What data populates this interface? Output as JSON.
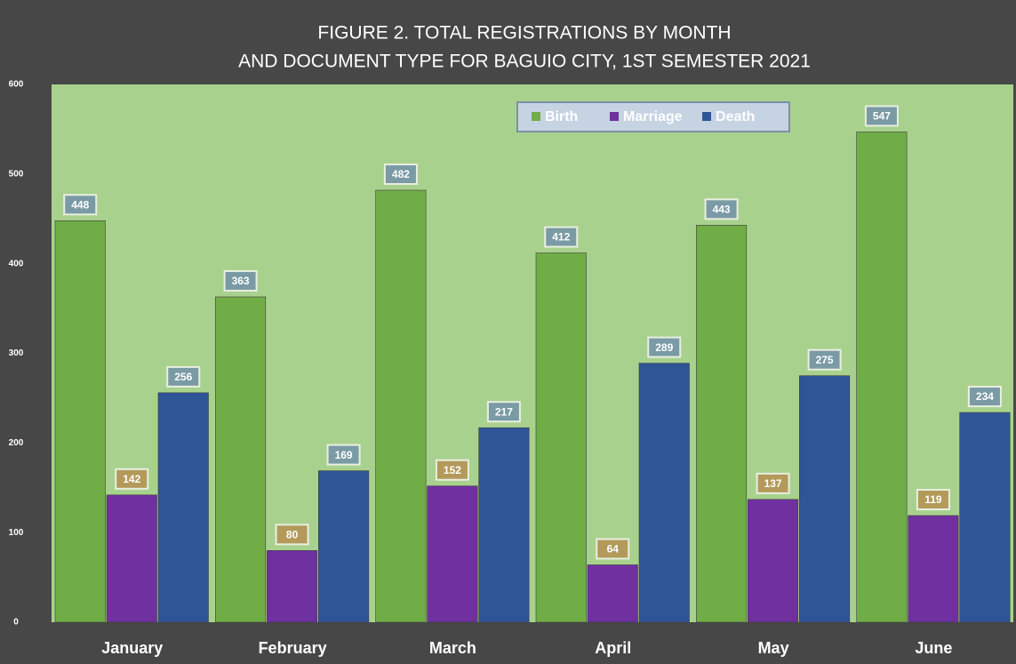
{
  "chart_data": {
    "type": "bar",
    "title": [
      "FIGURE 2. TOTAL REGISTRATIONS BY MONTH",
      "AND DOCUMENT TYPE FOR BAGUIO CITY, 1ST SEMESTER 2021"
    ],
    "categories": [
      "January",
      "February",
      "March",
      "April",
      "May",
      "June"
    ],
    "series": [
      {
        "name": "Birth",
        "color": "#70ad47",
        "values": [
          448,
          363,
          482,
          412,
          443,
          547
        ]
      },
      {
        "name": "Marriage",
        "color": "#7030a0",
        "values": [
          142,
          80,
          152,
          64,
          137,
          119
        ]
      },
      {
        "name": "Death",
        "color": "#2f5597",
        "values": [
          256,
          169,
          217,
          289,
          275,
          234
        ]
      }
    ],
    "ylim": [
      0,
      600
    ],
    "yticks": [
      0,
      100,
      200,
      300,
      400,
      500,
      600
    ]
  }
}
